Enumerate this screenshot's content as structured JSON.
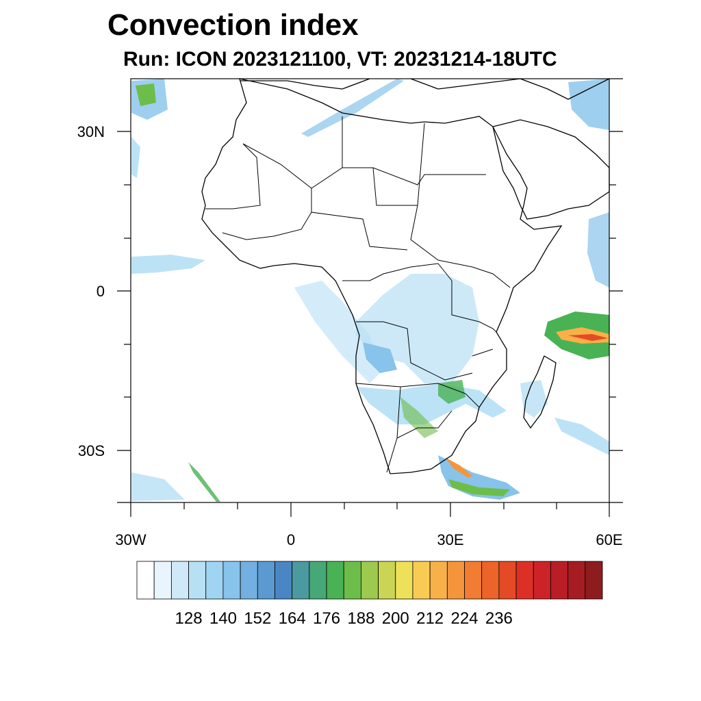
{
  "title": "Convection index",
  "subtitle": "Run: ICON 2023121100,  VT: 20231214-18UTC",
  "map": {
    "lon_ticks": [
      "30W",
      "0",
      "30E",
      "60E"
    ],
    "lat_ticks": [
      "30N",
      "0",
      "30S"
    ]
  },
  "colorbar": {
    "colors": [
      "#ffffff",
      "#e9f5fc",
      "#cfe9f8",
      "#b8e0f5",
      "#9fd5f2",
      "#87c3ea",
      "#72b0e1",
      "#5a9ad0",
      "#4a86c3",
      "#4a9aa0",
      "#46a876",
      "#49b254",
      "#6dbd4a",
      "#9dc94e",
      "#c9d553",
      "#eee15a",
      "#f8cb55",
      "#f8b048",
      "#f5953b",
      "#f07d32",
      "#ec6429",
      "#e44a26",
      "#dc3027",
      "#cc2329",
      "#b91e26",
      "#a51c22",
      "#8d1c1e"
    ],
    "labels": [
      "128",
      "140",
      "152",
      "164",
      "176",
      "188",
      "200",
      "212",
      "224",
      "236"
    ]
  }
}
